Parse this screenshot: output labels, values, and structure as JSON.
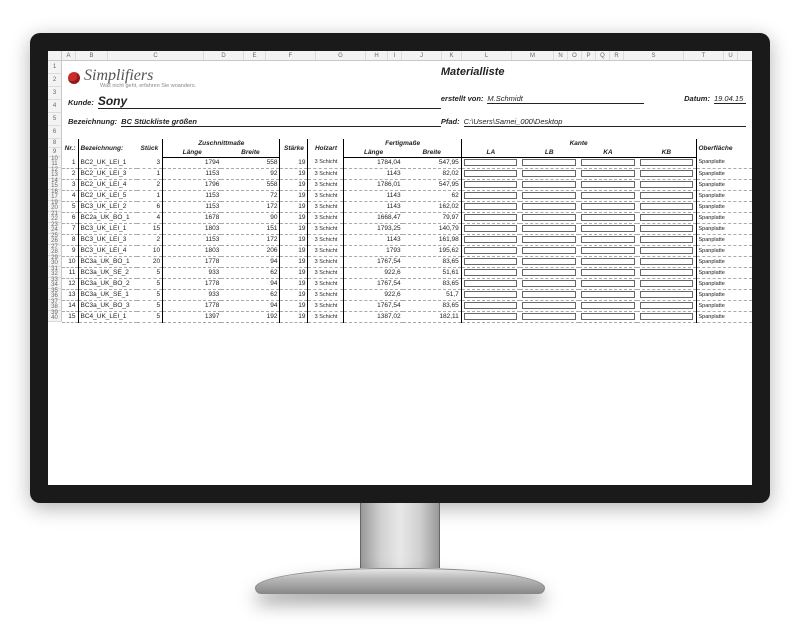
{
  "excel_columns": [
    "A",
    "B",
    "C",
    "D",
    "E",
    "F",
    "G",
    "H",
    "I",
    "J",
    "K",
    "L",
    "M",
    "N",
    "O",
    "P",
    "Q",
    "R",
    "S",
    "T",
    "U"
  ],
  "excel_col_widths": [
    14,
    32,
    96,
    40,
    22,
    50,
    50,
    22,
    14,
    40,
    20,
    50,
    42,
    14,
    14,
    14,
    14,
    14,
    60,
    40,
    14
  ],
  "row_numbers_header": [
    1,
    2,
    3,
    4,
    5,
    6,
    7,
    8,
    9
  ],
  "brand": {
    "name": "Simplifiers",
    "tagline": "Was nicht geht, erfahren Sie woanders."
  },
  "title": "Materialliste",
  "meta": {
    "kunde_label": "Kunde:",
    "kunde_value": "Sony",
    "erstellt_label": "erstellt von:",
    "erstellt_value": "M.Schmidt",
    "datum_label": "Datum:",
    "datum_value": "19.04.15",
    "bez_label": "Bezeichnung:",
    "bez_value": "BC Stückliste größen",
    "pfad_label": "Pfad:",
    "pfad_value": "C:\\Users\\Samei_000\\Desktop"
  },
  "columns": {
    "nr": "Nr.:",
    "bez": "Bezeichnung:",
    "stueck": "Stück",
    "zuschnitt": "Zuschnittmaße",
    "laenge": "Länge",
    "breite": "Breite",
    "staerke": "Stärke",
    "holzart": "Holzart",
    "fertig": "Fertigmaße",
    "kante": "Kante",
    "kante_sub": [
      "LA",
      "LB",
      "KA",
      "KB"
    ],
    "oberflaeche": "Oberfläche"
  },
  "rows": [
    {
      "rn": [
        10,
        11
      ],
      "nr": 1,
      "bez": "BC2_UK_LEI_1",
      "st": 3,
      "zl": 1794,
      "zb": 558,
      "s": 19,
      "h": "3 Schicht",
      "fl": "1784,04",
      "fb": "547,95",
      "ob": "Spanplatte"
    },
    {
      "rn": [
        12,
        13
      ],
      "nr": 2,
      "bez": "BC2_UK_LEI_3",
      "st": 1,
      "zl": 1153,
      "zb": 92,
      "s": 19,
      "h": "3 Schicht",
      "fl": "1143",
      "fb": "82,02",
      "ob": "Spanplatte"
    },
    {
      "rn": [
        14,
        15
      ],
      "nr": 3,
      "bez": "BC2_UK_LEI_4",
      "st": 2,
      "zl": 1796,
      "zb": 558,
      "s": 19,
      "h": "3 Schicht",
      "fl": "1786,01",
      "fb": "547,95",
      "ob": "Spanplatte"
    },
    {
      "rn": [
        16,
        17
      ],
      "nr": 4,
      "bez": "BC2_UK_LEI_5",
      "st": 1,
      "zl": 1153,
      "zb": 72,
      "s": 19,
      "h": "3 Schicht",
      "fl": "1143",
      "fb": "62",
      "ob": "Spanplatte"
    },
    {
      "rn": [
        19,
        20
      ],
      "nr": 5,
      "bez": "BC3_UK_LEI_2",
      "st": 6,
      "zl": 1153,
      "zb": 172,
      "s": 19,
      "h": "3 Schicht",
      "fl": "1143",
      "fb": "162,02",
      "ob": "Spanplatte"
    },
    {
      "rn": [
        21,
        22
      ],
      "nr": 6,
      "bez": "BC2a_UK_BO_1",
      "st": 4,
      "zl": 1678,
      "zb": 90,
      "s": 19,
      "h": "3 Schicht",
      "fl": "1668,47",
      "fb": "79,97",
      "ob": "Spanplatte"
    },
    {
      "rn": [
        23,
        24
      ],
      "nr": 7,
      "bez": "BC3_UK_LEI_1",
      "st": 15,
      "zl": 1803,
      "zb": 151,
      "s": 19,
      "h": "3 Schicht",
      "fl": "1793,25",
      "fb": "140,79",
      "ob": "Spanplatte"
    },
    {
      "rn": [
        25,
        26
      ],
      "nr": 8,
      "bez": "BC3_UK_LEI_3",
      "st": 2,
      "zl": 1153,
      "zb": 172,
      "s": 19,
      "h": "3 Schicht",
      "fl": "1143",
      "fb": "161,98",
      "ob": "Spanplatte"
    },
    {
      "rn": [
        27,
        28
      ],
      "nr": 9,
      "bez": "BC3_UK_LEI_4",
      "st": 10,
      "zl": 1803,
      "zb": 206,
      "s": 19,
      "h": "3 Schicht",
      "fl": "1793",
      "fb": "195,62",
      "ob": "Spanplatte"
    },
    {
      "rn": [
        29,
        30
      ],
      "nr": 10,
      "bez": "BC3a_UK_BO_1",
      "st": 20,
      "zl": 1778,
      "zb": 94,
      "s": 19,
      "h": "3 Schicht",
      "fl": "1767,54",
      "fb": "83,65",
      "ob": "Spanplatte"
    },
    {
      "rn": [
        31,
        32
      ],
      "nr": 11,
      "bez": "BC3a_UK_SE_2",
      "st": 5,
      "zl": 933,
      "zb": 62,
      "s": 19,
      "h": "3 Schicht",
      "fl": "922,6",
      "fb": "51,61",
      "ob": "Spanplatte"
    },
    {
      "rn": [
        33,
        34
      ],
      "nr": 12,
      "bez": "BC3a_UK_BO_2",
      "st": 5,
      "zl": 1778,
      "zb": 94,
      "s": 19,
      "h": "3 Schicht",
      "fl": "1767,54",
      "fb": "83,65",
      "ob": "Spanplatte"
    },
    {
      "rn": [
        35,
        36
      ],
      "nr": 13,
      "bez": "BC3a_UK_SE_1",
      "st": 5,
      "zl": 933,
      "zb": 62,
      "s": 19,
      "h": "3 Schicht",
      "fl": "922,6",
      "fb": "51,7",
      "ob": "Spanplatte"
    },
    {
      "rn": [
        37,
        38
      ],
      "nr": 14,
      "bez": "BC3a_UK_BO_3",
      "st": 5,
      "zl": 1778,
      "zb": 94,
      "s": 19,
      "h": "3 Schicht",
      "fl": "1767,54",
      "fb": "83,65",
      "ob": "Spanplatte"
    },
    {
      "rn": [
        39,
        40
      ],
      "nr": 15,
      "bez": "BC4_UK_LEI_1",
      "st": 5,
      "zl": 1397,
      "zb": 192,
      "s": 19,
      "h": "3 Schicht",
      "fl": "1387,02",
      "fb": "182,11",
      "ob": "Spanplatte"
    }
  ],
  "colors": {
    "bezel": "#1a1a1a",
    "grid_border": "#c8c8c8",
    "dash": "#aaaaaa",
    "text": "#222222",
    "logo": "#cc2b2b"
  }
}
